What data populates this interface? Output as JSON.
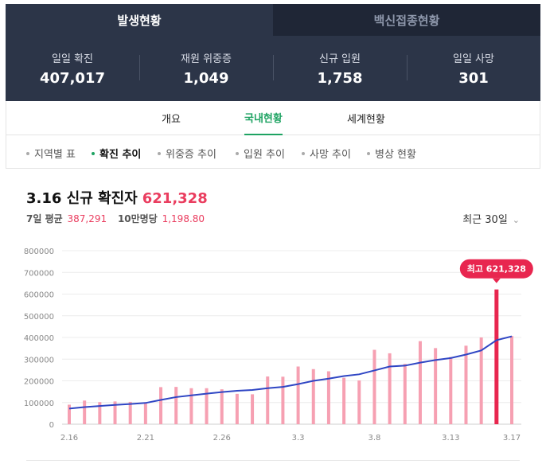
{
  "tabs": [
    {
      "label": "발생현황",
      "active": true
    },
    {
      "label": "백신접종현황",
      "active": false
    }
  ],
  "stats": [
    {
      "label": "일일 확진",
      "value": "407,017"
    },
    {
      "label": "재원 위중증",
      "value": "1,049"
    },
    {
      "label": "신규 입원",
      "value": "1,758"
    },
    {
      "label": "일일 사망",
      "value": "301"
    }
  ],
  "subnav": [
    {
      "label": "개요",
      "active": false
    },
    {
      "label": "국내현황",
      "active": true
    },
    {
      "label": "세계현황",
      "active": false
    }
  ],
  "filters": [
    {
      "label": "지역별 표",
      "active": false
    },
    {
      "label": "확진 추이",
      "active": true
    },
    {
      "label": "위중증 추이",
      "active": false
    },
    {
      "label": "입원 추이",
      "active": false
    },
    {
      "label": "사망 추이",
      "active": false
    },
    {
      "label": "병상 현황",
      "active": false
    }
  ],
  "headline": {
    "date": "3.16 신규 확진자",
    "value": "621,328"
  },
  "summary": {
    "avg_label": "7일 평균",
    "avg_value": "387,291",
    "per100k_label": "10만명당",
    "per100k_value": "1,198.80"
  },
  "range_label": "최근 30일",
  "colors": {
    "bar": "#f6a0b2",
    "bar_highlight": "#e8264f",
    "line": "#2f46c4",
    "accent": "#ea3d5f",
    "active_tab": "#1ea362"
  },
  "chart_data": {
    "type": "bar",
    "ylim": [
      0,
      800000
    ],
    "yticks": [
      0,
      100000,
      200000,
      300000,
      400000,
      500000,
      600000,
      700000,
      800000
    ],
    "xtick_labels": [
      "2.16",
      "2.21",
      "2.26",
      "3.3",
      "3.8",
      "3.13",
      "3.17"
    ],
    "grid": true,
    "categories": [
      "2.16",
      "2.17",
      "2.18",
      "2.19",
      "2.20",
      "2.21",
      "2.22",
      "2.23",
      "2.24",
      "2.25",
      "2.26",
      "2.27",
      "2.28",
      "3.1",
      "3.2",
      "3.3",
      "3.4",
      "3.5",
      "3.6",
      "3.7",
      "3.8",
      "3.9",
      "3.10",
      "3.11",
      "3.12",
      "3.13",
      "3.14",
      "3.15",
      "3.16",
      "3.17"
    ],
    "series": [
      {
        "type": "bar",
        "values": [
          90000,
          109000,
          102000,
          105000,
          103000,
          95000,
          171000,
          172000,
          166000,
          166000,
          161000,
          140000,
          138000,
          220000,
          219000,
          266000,
          254000,
          244000,
          214000,
          202000,
          343000,
          327000,
          278000,
          383000,
          351000,
          310000,
          362000,
          400000,
          621328,
          407017
        ]
      },
      {
        "type": "line",
        "values": [
          72000,
          79000,
          84000,
          89000,
          93000,
          98000,
          112000,
          125000,
          133000,
          141000,
          148000,
          154000,
          158000,
          166000,
          172000,
          185000,
          200000,
          210000,
          222000,
          230000,
          248000,
          266000,
          270000,
          284000,
          296000,
          305000,
          321000,
          340000,
          387291,
          405000
        ]
      }
    ],
    "highlight": {
      "index": 28,
      "label": "최고 621,328"
    }
  }
}
